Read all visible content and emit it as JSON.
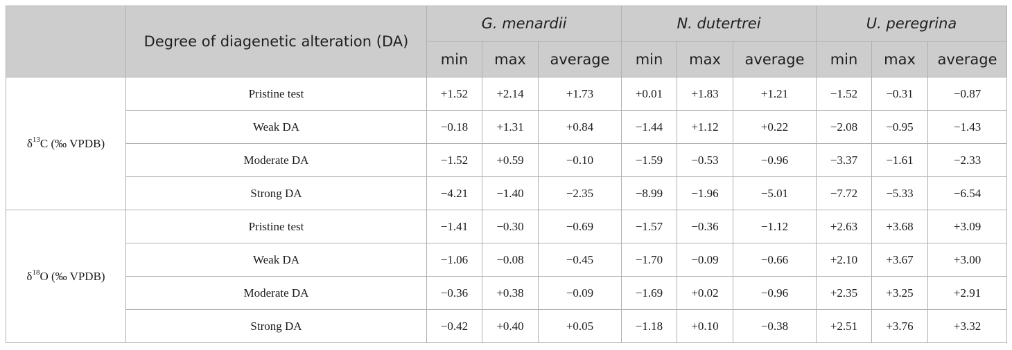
{
  "header": {
    "da_label": "Degree of diagenetic alteration (DA)",
    "species": [
      "G. menardii",
      "N. dutertrei",
      "U. peregrina"
    ],
    "stats": [
      "min",
      "max",
      "average"
    ]
  },
  "groups": [
    {
      "label_prefix": "δ",
      "label_sup": "13",
      "label_suffix": "C (‰ VPDB)",
      "rows": [
        {
          "label": "Pristine test",
          "values": [
            "+1.52",
            "+2.14",
            "+1.73",
            "+0.01",
            "+1.83",
            "+1.21",
            "−1.52",
            "−0.31",
            "−0.87"
          ]
        },
        {
          "label": "Weak DA",
          "values": [
            "−0.18",
            "+1.31",
            "+0.84",
            "−1.44",
            "+1.12",
            "+0.22",
            "−2.08",
            "−0.95",
            "−1.43"
          ]
        },
        {
          "label": "Moderate DA",
          "values": [
            "−1.52",
            "+0.59",
            "−0.10",
            "−1.59",
            "−0.53",
            "−0.96",
            "−3.37",
            "−1.61",
            "−2.33"
          ]
        },
        {
          "label": "Strong DA",
          "values": [
            "−4.21",
            "−1.40",
            "−2.35",
            "−8.99",
            "−1.96",
            "−5.01",
            "−7.72",
            "−5.33",
            "−6.54"
          ]
        }
      ]
    },
    {
      "label_prefix": "δ",
      "label_sup": "18",
      "label_suffix": "O (‰ VPDB)",
      "rows": [
        {
          "label": "Pristine test",
          "values": [
            "−1.41",
            "−0.30",
            "−0.69",
            "−1.57",
            "−0.36",
            "−1.12",
            "+2.63",
            "+3.68",
            "+3.09"
          ]
        },
        {
          "label": "Weak DA",
          "values": [
            "−1.06",
            "−0.08",
            "−0.45",
            "−1.70",
            "−0.09",
            "−0.66",
            "+2.10",
            "+3.67",
            "+3.00"
          ]
        },
        {
          "label": "Moderate DA",
          "values": [
            "−0.36",
            "+0.38",
            "−0.09",
            "−1.69",
            "+0.02",
            "−0.96",
            "+2.35",
            "+3.25",
            "+2.91"
          ]
        },
        {
          "label": "Strong DA",
          "values": [
            "−0.42",
            "+0.40",
            "+0.05",
            "−1.18",
            "+0.10",
            "−0.38",
            "+2.51",
            "+3.76",
            "+3.32"
          ]
        }
      ]
    }
  ]
}
